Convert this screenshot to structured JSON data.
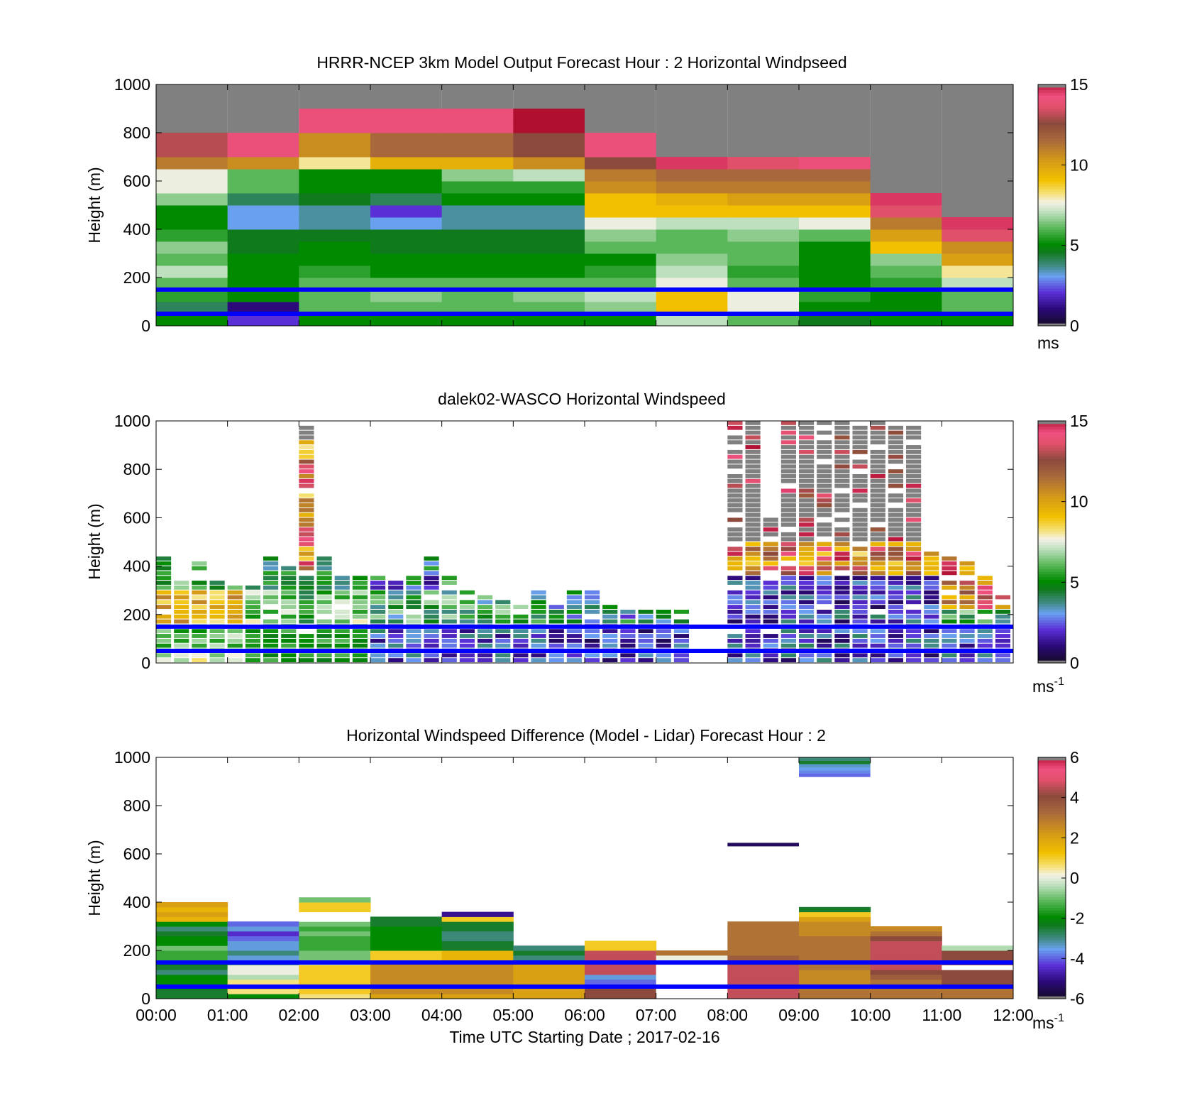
{
  "figure": {
    "xlabel": "Time UTC  Starting Date ; 2017-02-16",
    "xticks": [
      "00:00",
      "01:00",
      "02:00",
      "03:00",
      "04:00",
      "05:00",
      "06:00",
      "07:00",
      "08:00",
      "09:00",
      "10:00",
      "11:00",
      "12:00"
    ]
  },
  "chart_data": [
    {
      "type": "heatmap",
      "title": "HRRR-NCEP 3km Model Output   Forecast Hour : 2 Horizontal Windpseed",
      "ylabel": "Height (m)",
      "xlim": [
        0,
        12
      ],
      "ylim": [
        0,
        1000
      ],
      "yticks": [
        "0",
        "200",
        "400",
        "600",
        "800",
        "1000"
      ],
      "colorbar": {
        "range": [
          0,
          15
        ],
        "ticks": [
          "0",
          "5",
          "10",
          "15"
        ],
        "label": "ms",
        "label_sup": ""
      },
      "reference_lines_m": [
        150,
        50
      ],
      "cell_height_m": 50,
      "columns": [
        {
          "hour": 0,
          "x0": 0,
          "levels": [
            5,
            4,
            5.5,
            6,
            7,
            6,
            6.5,
            5.5,
            5,
            5,
            6.5,
            7.5,
            7.5,
            11,
            13,
            13
          ]
        },
        {
          "hour": 1,
          "x0": 1,
          "levels": [
            2,
            1,
            5,
            5,
            5,
            5,
            4.5,
            4.5,
            3,
            3,
            4,
            6,
            6,
            10.5,
            14,
            14
          ]
        },
        {
          "hour": 2,
          "x0": 2,
          "levels": [
            5,
            6,
            6,
            6,
            5.5,
            5,
            5,
            4.5,
            3.5,
            3.5,
            4.5,
            5,
            5,
            8,
            10.5,
            10.5,
            14,
            14
          ]
        },
        {
          "hour": 3,
          "x0": 3,
          "levels": [
            5,
            6,
            6.5,
            6,
            5,
            5,
            4.5,
            4.5,
            3,
            2,
            4,
            5,
            5,
            9.5,
            11.5,
            11.5,
            14,
            14
          ]
        },
        {
          "hour": 4,
          "x0": 4,
          "levels": [
            5,
            6,
            6,
            6,
            5,
            5,
            4.5,
            4.5,
            3.5,
            3.5,
            5,
            5.5,
            6.5,
            9.5,
            11.5,
            11.5,
            14,
            14
          ]
        },
        {
          "hour": 5,
          "x0": 5,
          "levels": [
            5,
            6,
            6.5,
            6,
            5,
            5,
            4.5,
            4.5,
            3.5,
            3.5,
            5,
            5.5,
            7,
            10.5,
            12.5,
            12.5,
            15,
            15
          ]
        },
        {
          "hour": 6,
          "x0": 6,
          "levels": [
            5,
            6.5,
            7,
            6,
            5.5,
            5,
            6,
            6.5,
            7.5,
            9,
            9,
            10.5,
            11,
            12.5,
            14,
            14
          ]
        },
        {
          "hour": 7,
          "x0": 7,
          "levels": [
            7,
            9,
            9,
            7.5,
            7,
            6.5,
            6,
            6,
            7,
            9,
            9.5,
            11,
            11.5,
            14.5
          ]
        },
        {
          "hour": 8,
          "x0": 8,
          "levels": [
            6,
            7.5,
            7.5,
            6,
            5.5,
            6,
            6,
            6.5,
            7,
            9,
            10,
            11,
            11.5,
            13.5
          ]
        },
        {
          "hour": 9,
          "x0": 9,
          "levels": [
            4.5,
            5,
            5.5,
            5,
            5,
            5,
            5,
            6,
            7.5,
            9,
            10,
            11,
            11.5,
            14
          ]
        },
        {
          "hour": 10,
          "x0": 10,
          "levels": [
            5,
            5,
            5,
            5.5,
            6,
            6.5,
            9,
            10,
            11,
            13.5,
            14.5
          ]
        },
        {
          "hour": 11,
          "x0": 11,
          "levels": [
            5,
            6,
            6,
            7,
            8,
            10,
            10.5,
            13.5,
            14.5
          ]
        }
      ]
    },
    {
      "type": "heatmap",
      "title": "dalek02-WASCO  Horizontal Windspeed",
      "ylabel": "Height (m)",
      "xlim": [
        0,
        12
      ],
      "ylim": [
        0,
        1000
      ],
      "yticks": [
        "0",
        "200",
        "400",
        "600",
        "800",
        "1000"
      ],
      "colorbar": {
        "range": [
          0,
          15
        ],
        "ticks": [
          "0",
          "5",
          "10",
          "15"
        ],
        "label": "ms",
        "label_sup": "-1"
      },
      "reference_lines_m": [
        150,
        50
      ],
      "cell_height_m": 20,
      "column_width_h": 0.25,
      "columns": [
        {
          "hour": 0.0,
          "top": 440,
          "regime": "yellow"
        },
        {
          "hour": 0.25,
          "top": 340,
          "regime": "yellow"
        },
        {
          "hour": 0.5,
          "top": 440,
          "regime": "yellow"
        },
        {
          "hour": 0.75,
          "top": 330,
          "regime": "yellow"
        },
        {
          "hour": 1.0,
          "top": 320,
          "regime": "yellow"
        },
        {
          "hour": 1.25,
          "top": 310,
          "regime": "green"
        },
        {
          "hour": 1.5,
          "top": 440,
          "regime": "green"
        },
        {
          "hour": 1.75,
          "top": 400,
          "regime": "green"
        },
        {
          "hour": 2.0,
          "top": 980,
          "regime": "tall"
        },
        {
          "hour": 2.25,
          "top": 440,
          "regime": "green"
        },
        {
          "hour": 2.5,
          "top": 360,
          "regime": "green"
        },
        {
          "hour": 2.75,
          "top": 360,
          "regime": "green"
        },
        {
          "hour": 3.0,
          "top": 360,
          "regime": "mixed"
        },
        {
          "hour": 3.25,
          "top": 340,
          "regime": "mixed"
        },
        {
          "hour": 3.5,
          "top": 360,
          "regime": "mixed"
        },
        {
          "hour": 3.75,
          "top": 440,
          "regime": "mixed"
        },
        {
          "hour": 4.0,
          "top": 360,
          "regime": "mixed"
        },
        {
          "hour": 4.25,
          "top": 300,
          "regime": "mixed"
        },
        {
          "hour": 4.5,
          "top": 280,
          "regime": "mixed"
        },
        {
          "hour": 4.75,
          "top": 280,
          "regime": "mixed"
        },
        {
          "hour": 5.0,
          "top": 240,
          "regime": "mixed"
        },
        {
          "hour": 5.25,
          "top": 300,
          "regime": "mixed"
        },
        {
          "hour": 5.5,
          "top": 240,
          "regime": "low"
        },
        {
          "hour": 5.75,
          "top": 300,
          "regime": "low"
        },
        {
          "hour": 6.0,
          "top": 300,
          "regime": "low"
        },
        {
          "hour": 6.25,
          "top": 240,
          "regime": "low"
        },
        {
          "hour": 6.5,
          "top": 220,
          "regime": "low"
        },
        {
          "hour": 6.75,
          "top": 220,
          "regime": "low"
        },
        {
          "hour": 7.0,
          "top": 220,
          "regime": "low"
        },
        {
          "hour": 7.25,
          "top": 220,
          "regime": "low"
        },
        {
          "hour": 7.5,
          "top": 0,
          "regime": "none"
        },
        {
          "hour": 7.75,
          "top": 0,
          "regime": "none"
        },
        {
          "hour": 8.0,
          "top": 1000,
          "regime": "tall"
        },
        {
          "hour": 8.25,
          "top": 1000,
          "regime": "tall"
        },
        {
          "hour": 8.5,
          "top": 600,
          "regime": "tall"
        },
        {
          "hour": 8.75,
          "top": 1000,
          "regime": "tall"
        },
        {
          "hour": 9.0,
          "top": 1000,
          "regime": "tall"
        },
        {
          "hour": 9.25,
          "top": 1000,
          "regime": "tall"
        },
        {
          "hour": 9.5,
          "top": 1000,
          "regime": "tall"
        },
        {
          "hour": 9.75,
          "top": 980,
          "regime": "tall"
        },
        {
          "hour": 10.0,
          "top": 1000,
          "regime": "tall"
        },
        {
          "hour": 10.25,
          "top": 980,
          "regime": "tall"
        },
        {
          "hour": 10.5,
          "top": 980,
          "regime": "tall"
        },
        {
          "hour": 10.75,
          "top": 460,
          "regime": "tall"
        },
        {
          "hour": 11.0,
          "top": 440,
          "regime": "mixed"
        },
        {
          "hour": 11.25,
          "top": 420,
          "regime": "mixed"
        },
        {
          "hour": 11.5,
          "top": 360,
          "regime": "mixed"
        },
        {
          "hour": 11.75,
          "top": 280,
          "regime": "mixed"
        }
      ]
    },
    {
      "type": "heatmap",
      "title": "Horizontal Windspeed Difference (Model - Lidar) Forecast Hour : 2",
      "ylabel": "Height (m)",
      "xlim": [
        0,
        12
      ],
      "ylim": [
        0,
        1000
      ],
      "yticks": [
        "0",
        "200",
        "400",
        "600",
        "800",
        "1000"
      ],
      "colorbar": {
        "range": [
          -6,
          6
        ],
        "ticks": [
          "-6",
          "-4",
          "-2",
          "0",
          "2",
          "4",
          "6"
        ],
        "label": "ms",
        "label_sup": "-1"
      },
      "reference_lines_m": [
        150,
        50
      ],
      "cell_height_m": 20,
      "columns": [
        {
          "hour": 0,
          "x0": 0,
          "levels": [
            -2.5,
            -2.5,
            -2,
            -2,
            -2,
            -3,
            -2.5,
            -2,
            -1.5,
            -1.5,
            -1,
            -2,
            -2,
            -2.5,
            -3,
            -2,
            1.5,
            2,
            1.5,
            2
          ]
        },
        {
          "hour": 1,
          "x0": 1,
          "levels": [
            -2,
            0.5,
            1,
            0.5,
            -0.5,
            0,
            0,
            -3,
            -3.5,
            -3,
            -3.5,
            -3.5,
            -4,
            -4.5,
            -3.5,
            -4
          ]
        },
        {
          "hour": 2,
          "x0": 2,
          "levels": [
            0.5,
            1,
            1,
            1,
            1,
            1,
            1,
            -0.5,
            -1,
            -1,
            -1.5,
            -1.5,
            -1.5,
            -1,
            -1.5,
            -1,
            99,
            99,
            1,
            1,
            -1
          ]
        },
        {
          "hour": 3,
          "x0": 3,
          "levels": [
            2,
            2.5,
            2.5,
            2.5,
            2.5,
            2.5,
            2.5,
            2.5,
            1,
            1,
            -2,
            -2,
            -2,
            -2,
            -2,
            -2.5,
            -2.5
          ]
        },
        {
          "hour": 4,
          "x0": 4,
          "levels": [
            2,
            2.5,
            2.5,
            2.5,
            2.5,
            2.5,
            2.5,
            2.5,
            1.5,
            1.5,
            -2.5,
            -2.5,
            -3,
            -3,
            -2.5,
            -2.5,
            1,
            -5
          ]
        },
        {
          "hour": 5,
          "x0": 5,
          "levels": [
            2,
            2,
            2,
            2,
            2,
            2,
            2,
            2,
            -3,
            -2.5,
            -3
          ]
        },
        {
          "hour": 6,
          "x0": 6,
          "levels": [
            4,
            4,
            4,
            -4,
            -3.5,
            4.5,
            4.5,
            4.5,
            4.5,
            4.5,
            1,
            1
          ]
        },
        {
          "hour": 7,
          "x0": 7,
          "levels": [
            99,
            99,
            99,
            99,
            99,
            99,
            99,
            0,
            0,
            3
          ]
        },
        {
          "hour": 8,
          "x0": 8,
          "levels": [
            4.5,
            4.5,
            4.5,
            4.5,
            4.5,
            4.5,
            4.5,
            3.5,
            3.5,
            3,
            3,
            3,
            3,
            3,
            3,
            3
          ]
        },
        {
          "hour": 9,
          "x0": 9,
          "levels": [
            3,
            3,
            3,
            2.5,
            2.5,
            2.5,
            3,
            3,
            3,
            3,
            3,
            3,
            3,
            2.5,
            2.5,
            2.5,
            2,
            1,
            -2.5
          ]
        },
        {
          "hour": 10,
          "x0": 10,
          "levels": [
            3,
            3,
            3,
            3,
            3.5,
            4,
            4.5,
            4.5,
            4.5,
            4.5,
            4.5,
            4.5,
            4,
            3,
            2.5
          ]
        },
        {
          "hour": 11,
          "x0": 11,
          "levels": [
            3,
            3,
            3,
            4,
            4,
            4,
            99,
            4,
            4,
            4,
            -0.5
          ]
        }
      ],
      "isolated_segments": [
        {
          "x0": 8,
          "x1": 9,
          "y": 640,
          "value": -5.5
        },
        {
          "x0": 9,
          "x1": 10,
          "y0": 920,
          "y1": 1000,
          "values": [
            -4,
            -3.8,
            -3.6,
            -3.4,
            -2.5,
            -3
          ]
        }
      ]
    }
  ]
}
